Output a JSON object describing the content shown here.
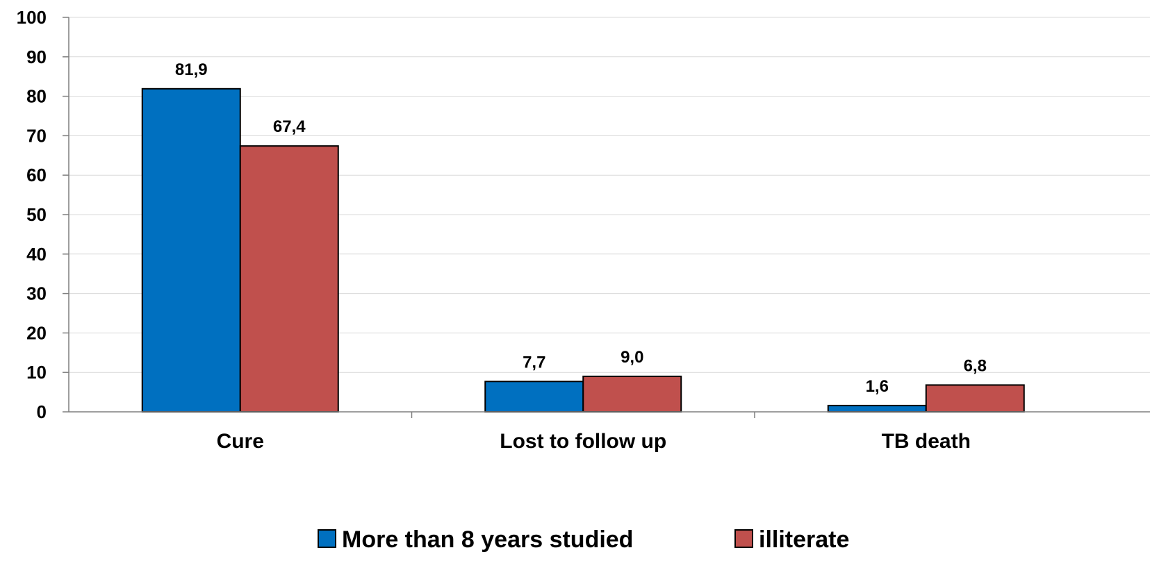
{
  "chart_data": {
    "type": "bar",
    "categories": [
      "Cure",
      "Lost to follow up",
      "TB death"
    ],
    "series": [
      {
        "name": "More than 8 years studied",
        "values": [
          81.9,
          7.7,
          1.6
        ],
        "labels": [
          "81,9",
          "7,7",
          "1,6"
        ],
        "color": "#0070C0"
      },
      {
        "name": "illiterate",
        "values": [
          67.4,
          9.0,
          6.8
        ],
        "labels": [
          "67,4",
          "9,0",
          "6,8"
        ],
        "color": "#C0504D"
      }
    ],
    "ylim": [
      0,
      100
    ],
    "yticks": [
      0,
      10,
      20,
      30,
      40,
      50,
      60,
      70,
      80,
      90,
      100
    ],
    "grid": true,
    "legend_position": "bottom"
  }
}
